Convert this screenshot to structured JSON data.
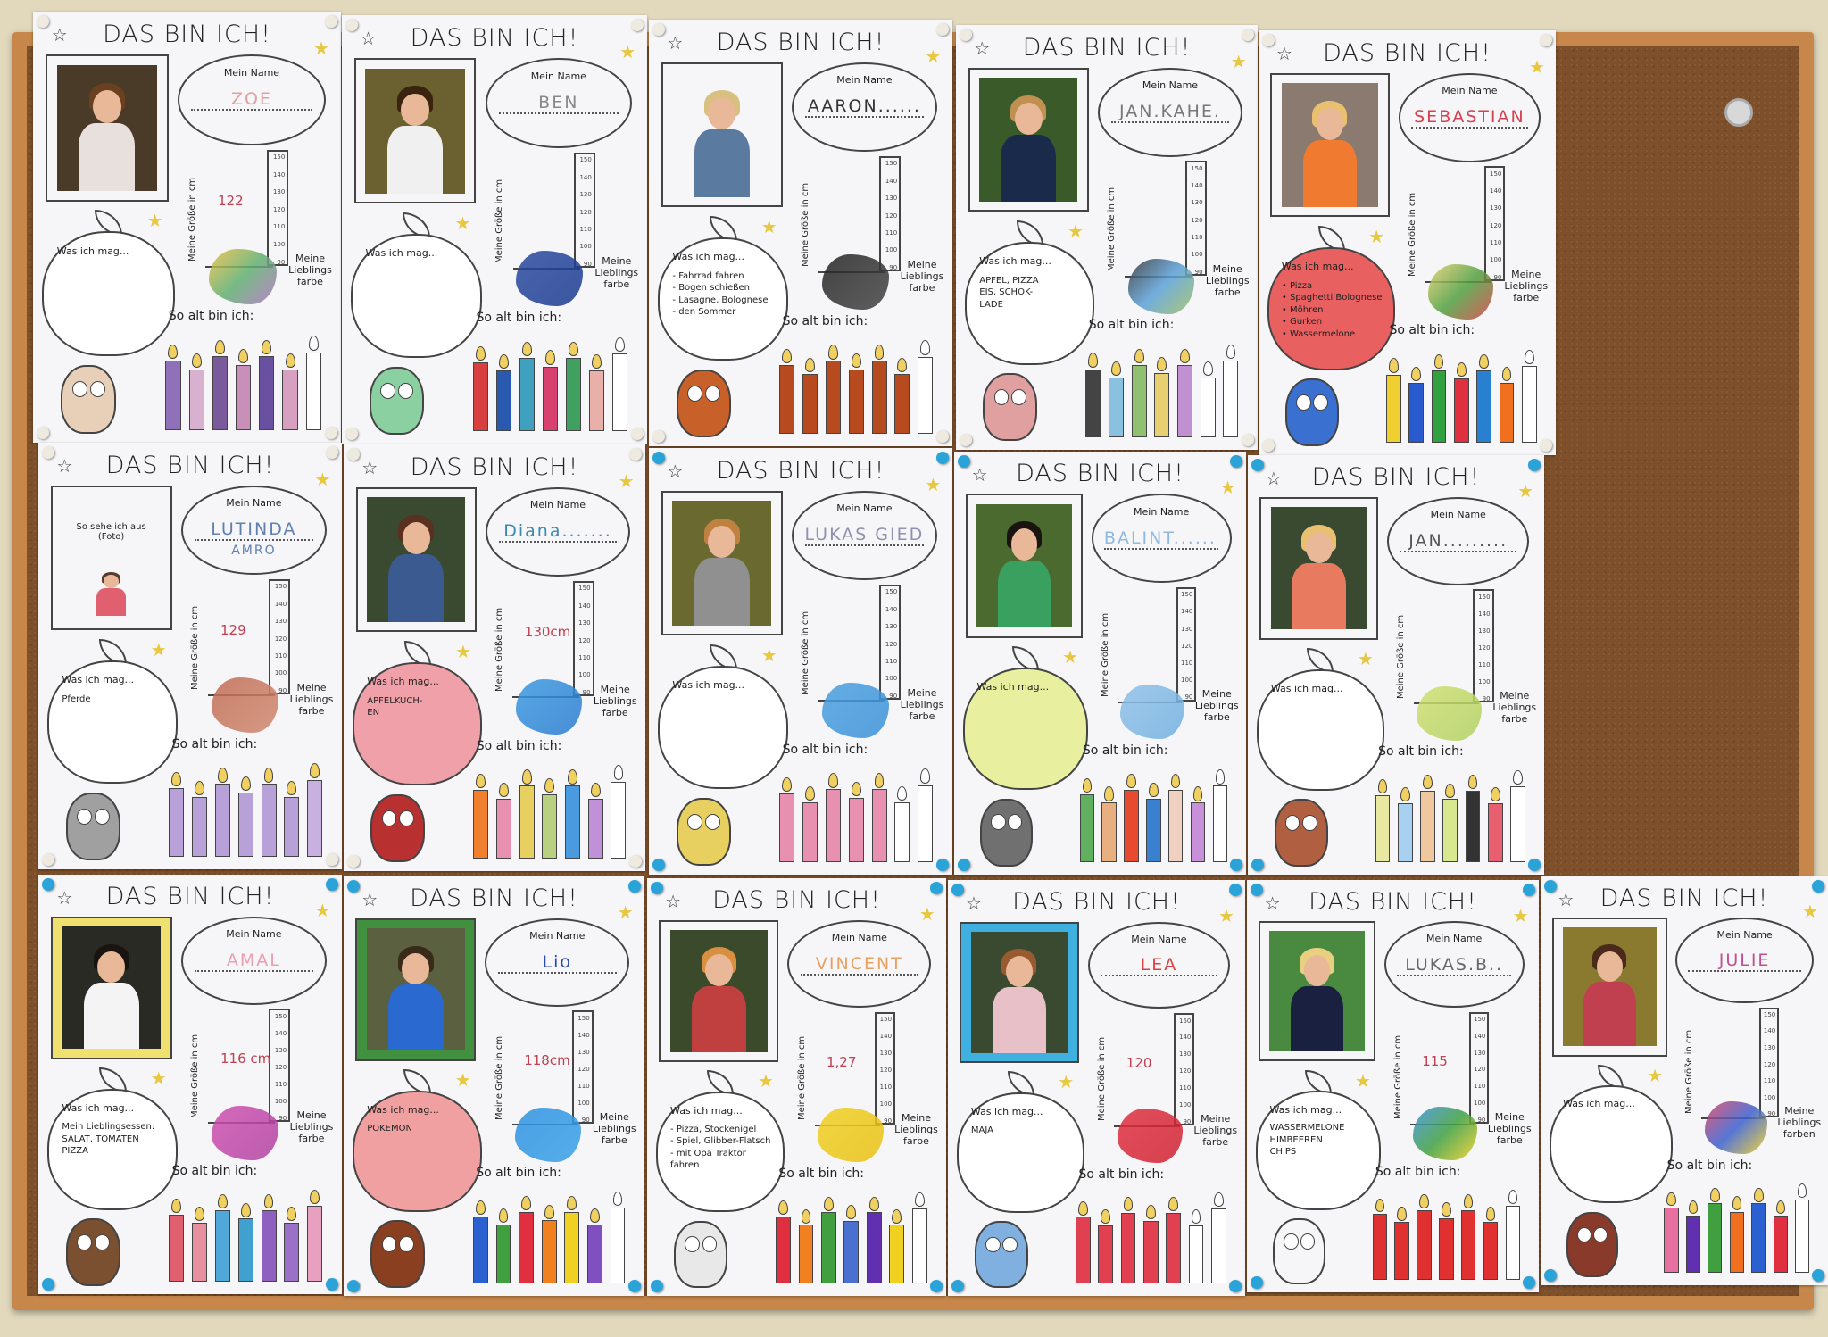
{
  "labels": {
    "title": "DAS BIN ICH!",
    "name_label": "Mein Name",
    "height_label": "Meine Größe in cm",
    "likes_label": "Was ich mag...",
    "color_label": "Meine Lieblings farbe",
    "age_label": "So alt bin ich:",
    "scale_ticks": [
      "150",
      "140",
      "130",
      "120",
      "110",
      "100",
      "90"
    ]
  },
  "colors": {
    "wall": "#e2d9bd",
    "frame": "#c7874a",
    "cork": "#7d4f2a",
    "pin": "#2aa4d8"
  },
  "posters": [
    {
      "name": "ZOE",
      "height": "122",
      "likes": [],
      "photo": "#4a3a28",
      "shirt": "#e8e0dc",
      "hair": "#6a4020",
      "name_color": "#e0a0a0",
      "splash": [
        "#f0c040",
        "#60b070",
        "#b070c0"
      ],
      "candles": [
        "#9070b8",
        "#d8b0d0",
        "#7a5a9a",
        "#c890b8",
        "#6a50a0",
        "#d8a0c0",
        "#ffffff"
      ],
      "owl": "#e8d0b8",
      "apple": "#ffffff"
    },
    {
      "name": "BEN",
      "height": "",
      "likes": [],
      "photo": "#6a6030",
      "shirt": "#f0f0f0",
      "hair": "#3a2410",
      "name_color": "#888888",
      "splash": [
        "#2a4aa0",
        "#1a3a90"
      ],
      "candles": [
        "#d84040",
        "#2a5ab0",
        "#40a0c0",
        "#d84070",
        "#40a060",
        "#e8b0a8",
        "#ffffff"
      ],
      "owl": "#8ad0a0",
      "apple": "#ffffff"
    },
    {
      "name": "AARON......",
      "height": "",
      "likes": [
        "- Fahrrad fahren",
        "- Bogen schießen",
        "- Lasagne, Bolognese",
        "- den Sommer"
      ],
      "photo": "#f6f6f8",
      "shirt": "#5a7aa0",
      "hair": "#d8c080",
      "name_color": "#333333",
      "splash": [
        "#222222",
        "#444444"
      ],
      "candles": [
        "#b84a20",
        "#b84a20",
        "#b84a20",
        "#b84a20",
        "#b84a20",
        "#b84a20",
        "#ffffff"
      ],
      "owl": "#c8602a",
      "apple": "#ffffff"
    },
    {
      "name": "JAN.KAHE.",
      "height": "",
      "likes": [
        "APFEL, PIZZA",
        "EIS, SCHOK-",
        "LADE"
      ],
      "photo": "#3a5a2a",
      "shirt": "#1a2a4a",
      "hair": "#c09050",
      "name_color": "#777777",
      "splash": [
        "#333333",
        "#5aa0d8",
        "#a0c060"
      ],
      "candles": [
        "#444444",
        "#8ac0e0",
        "#90c070",
        "#e8d070",
        "#c090d0",
        "#ffffff",
        "#ffffff"
      ],
      "owl": "#e0a0a0",
      "apple": "#ffffff"
    },
    {
      "name": "SEBASTIAN",
      "height": "",
      "likes": [
        "• Pizza",
        "• Spaghetti Bolognese",
        "• Möhren",
        "• Gurken",
        "• Wassermelone"
      ],
      "photo": "#8a7a70",
      "shirt": "#f07a30",
      "hair": "#e8c070",
      "name_color": "#d84050",
      "splash": [
        "#e8d070",
        "#50a040",
        "#d84040"
      ],
      "candles": [
        "#f0d030",
        "#2a5ad0",
        "#30a040",
        "#e03040",
        "#2a80d0",
        "#f07020",
        "#ffffff"
      ],
      "owl": "#3a70d0",
      "apple": "#e86060"
    },
    {
      "name": "LUTINDA",
      "name2": "AMRO",
      "photo_caption": "So sehe ich aus (Foto)",
      "height": "129",
      "likes": [
        "Pferde"
      ],
      "photo": "#f6f6f8",
      "shirt": "#e06070",
      "hair": "#5a3a2a",
      "name_color": "#6080b0",
      "splash": [
        "#c06a50",
        "#d08870"
      ],
      "candles": [
        "#b8a0d8",
        "#b8a0d8",
        "#b8a0d8",
        "#b8a0d8",
        "#b8a0d8",
        "#b8a0d8",
        "#c8b0e0"
      ],
      "owl": "#a0a0a0",
      "apple": "#ffffff"
    },
    {
      "name": "Diana.......",
      "height": "130cm",
      "likes": [
        "APFELKUCH-",
        "EN"
      ],
      "photo": "#3a4a30",
      "shirt": "#3a5a90",
      "hair": "#5a3020",
      "name_color": "#3a8ab0",
      "splash": [
        "#3a9ae0",
        "#2a7ad0"
      ],
      "candles": [
        "#f08030",
        "#e890b0",
        "#e8d060",
        "#b8d080",
        "#4a9ae0",
        "#c090d8",
        "#ffffff"
      ],
      "owl": "#b83030",
      "apple": "#f0a0a8"
    },
    {
      "name": "LUKAS GIEDEN...",
      "height": "",
      "likes": [],
      "photo": "#6a6a30",
      "shirt": "#909090",
      "hair": "#c08040",
      "name_color": "#9090b0",
      "splash": [
        "#4aa0e0",
        "#3a90d8"
      ],
      "candles": [
        "#e890b0",
        "#e890b0",
        "#e890b0",
        "#e890b0",
        "#e890b0",
        "#ffffff",
        "#ffffff"
      ],
      "owl": "#e8d060",
      "apple": "#ffffff"
    },
    {
      "name": "BALINT.......",
      "height": "",
      "likes": [],
      "photo": "#4a6a30",
      "shirt": "#3aa060",
      "hair": "#1a1410",
      "name_color": "#90b8e0",
      "splash": [
        "#90c0e8",
        "#70b0e0"
      ],
      "candles": [
        "#60b060",
        "#e8b080",
        "#e84a30",
        "#3a80d0",
        "#f0d0c0",
        "#c890d8",
        "#ffffff"
      ],
      "owl": "#707070",
      "apple": "#e8f0a0"
    },
    {
      "name": "JAN.........",
      "height": "",
      "likes": [],
      "photo": "#3a4a30",
      "shirt": "#e87a60",
      "hair": "#e8c070",
      "name_color": "#555555",
      "splash": [
        "#d0e070",
        "#b0d060"
      ],
      "candles": [
        "#e8e8a0",
        "#a8d0f0",
        "#f0c8a0",
        "#d8e890",
        "#333333",
        "#e86070",
        "#ffffff"
      ],
      "owl": "#b06040",
      "apple": "#ffffff"
    },
    {
      "name": "AMAL",
      "height": "116 cm",
      "likes": [
        "Mein Lieblingsessen:",
        "SALAT, TOMATEN",
        "PIZZA"
      ],
      "photo": "#2a2a24",
      "shirt": "#f4f4f4",
      "hair": "#1a1410",
      "name_color": "#e8a0b0",
      "frame": "#f0e070",
      "splash": [
        "#d050b0",
        "#b040a0"
      ],
      "candles": [
        "#e06070",
        "#e890a0",
        "#50a8d8",
        "#40a0d0",
        "#9060c0",
        "#9a70c8",
        "#e8a0c0"
      ],
      "owl": "#7a5030",
      "apple": "#ffffff"
    },
    {
      "name": "Lio",
      "height": "118cm",
      "likes": [
        "POKEMON"
      ],
      "photo": "#5a6040",
      "shirt": "#2a6ad0",
      "hair": "#3a2a1a",
      "name_color": "#2a4ab0",
      "frame": "#409040",
      "splash": [
        "#2a90e0",
        "#3aa0e8"
      ],
      "candles": [
        "#2a60d0",
        "#40a040",
        "#e03040",
        "#f08020",
        "#f0d020",
        "#8050c0",
        "#ffffff"
      ],
      "owl": "#8a4020",
      "apple": "#f0a0a0"
    },
    {
      "name": "VINCENT",
      "height": "1,27",
      "likes": [
        "- Pizza, Stockenigel",
        "- Spiel, Glibber-Flatsch",
        "- mit Opa Traktor",
        "  fahren"
      ],
      "photo": "#3a4a2a",
      "shirt": "#c04040",
      "hair": "#d89040",
      "name_color": "#e8a060",
      "splash": [
        "#f0d020",
        "#e8c010"
      ],
      "candles": [
        "#e03040",
        "#f08020",
        "#40a040",
        "#4a70d0",
        "#6030b0",
        "#f0d020",
        "#ffffff"
      ],
      "owl": "#e8e8e8",
      "apple": "#ffffff"
    },
    {
      "name": "LEA",
      "height": "120",
      "likes": [
        "MAJA"
      ],
      "photo": "#3a4a30",
      "shirt": "#e8c0c8",
      "hair": "#9a5a30",
      "name_color": "#e04040",
      "frame": "#40b0e0",
      "splash": [
        "#e03040",
        "#d02030"
      ],
      "candles": [
        "#e04050",
        "#e04050",
        "#e04050",
        "#e04050",
        "#e04050",
        "#ffffff",
        "#ffffff"
      ],
      "owl": "#80b0e0",
      "apple": "#ffffff"
    },
    {
      "name": "LUKAS.B..",
      "height": "115",
      "likes": [
        "WASSERMELONE",
        "HIMBEEREN",
        "CHIPS"
      ],
      "photo": "#4a8a40",
      "shirt": "#1a2040",
      "hair": "#e8d080",
      "name_color": "#666666",
      "splash": [
        "#3a90e0",
        "#40a040",
        "#f0d020"
      ],
      "candles": [
        "#e03030",
        "#e03030",
        "#e03030",
        "#e03030",
        "#e03030",
        "#e03030",
        "#ffffff"
      ],
      "owl": "#f6f6f8",
      "apple": "#ffffff"
    },
    {
      "name": "JULIE",
      "height": "",
      "likes": [],
      "color_label": "Meine Lieblings farben",
      "photo": "#8a7a30",
      "shirt": "#c04050",
      "hair": "#4a2a1a",
      "name_color": "#c05090",
      "splash": [
        "#e04060",
        "#3a60d0",
        "#f0d020"
      ],
      "candles": [
        "#e870a0",
        "#6030b0",
        "#40a040",
        "#f07020",
        "#2a60d0",
        "#e03040",
        "#ffffff"
      ],
      "owl": "#8a3a2a",
      "apple": "#ffffff"
    }
  ]
}
